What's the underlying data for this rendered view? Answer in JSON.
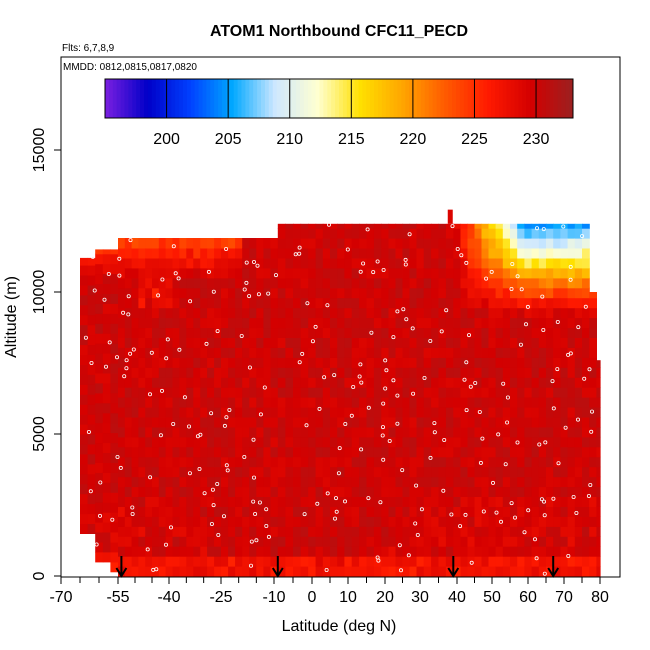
{
  "chart_data": {
    "type": "heatmap",
    "title": "ATOM1 Northbound CFC11_PECD",
    "flights_label": "Flts: 6,7,8,9",
    "dates_label": "MMDD: 0812,0815,0817,0820",
    "xlabel": "Latitude (deg N)",
    "ylabel": "Altitude (m)",
    "xlim": [
      -70,
      80
    ],
    "ylim": [
      0,
      17500
    ],
    "x_ticks": [
      -70,
      -55,
      -40,
      -25,
      -10,
      0,
      10,
      20,
      30,
      40,
      50,
      60,
      70,
      80
    ],
    "x_tick_labels": [
      "-70",
      "-55",
      "-40",
      "-25",
      "-10",
      "0",
      "10",
      "20",
      "30",
      "40",
      "50",
      "60",
      "70",
      "80"
    ],
    "y_ticks": [
      0,
      5000,
      10000,
      15000
    ],
    "y_tick_labels": [
      "0",
      "5000",
      "10000",
      "15000"
    ],
    "colorbar": {
      "range": [
        195,
        233
      ],
      "ticks": [
        200,
        205,
        210,
        215,
        220,
        225,
        230
      ],
      "tick_labels": [
        "200",
        "205",
        "210",
        "215",
        "220",
        "225",
        "230"
      ],
      "colors": [
        "#7b1fe0",
        "#0000c8",
        "#0040ff",
        "#00a8ff",
        "#cfe8ff",
        "#ffffd0",
        "#ffe000",
        "#ffa500",
        "#ff5a00",
        "#ff1a00",
        "#d40000",
        "#9b2020"
      ]
    },
    "value_range_shown": [
      196,
      233
    ],
    "arrows_at_latitude": [
      -54,
      -9,
      39,
      67
    ],
    "data_extent": {
      "lat_min": -65,
      "lat_max": 80,
      "alt_min": 0,
      "alt_max": 12900
    },
    "summary_fields": {
      "background": 230,
      "surface": 228,
      "upper_north": 208,
      "upper_south": 222
    }
  }
}
